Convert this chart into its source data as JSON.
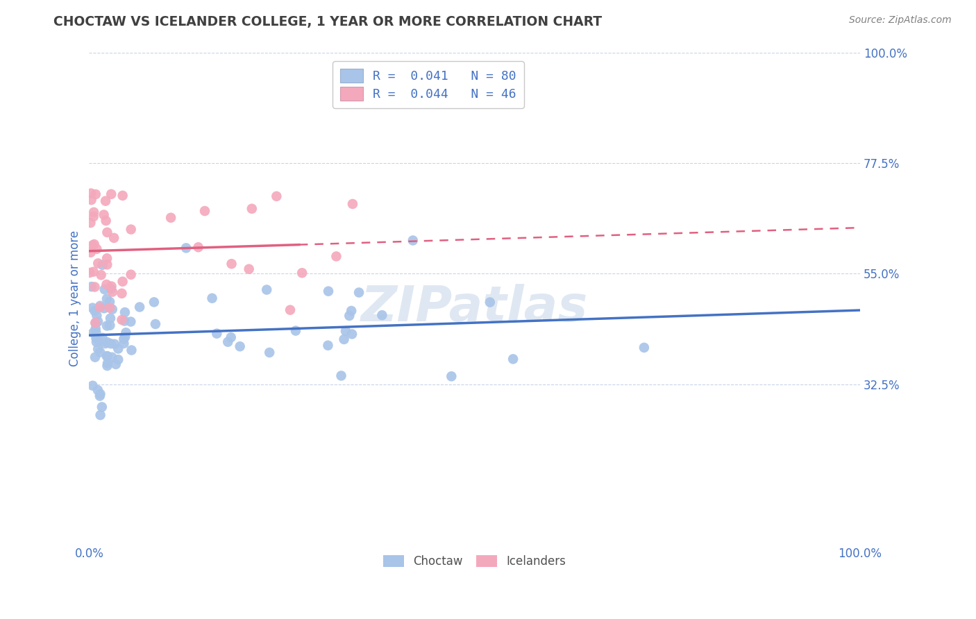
{
  "title": "CHOCTAW VS ICELANDER COLLEGE, 1 YEAR OR MORE CORRELATION CHART",
  "source": "Source: ZipAtlas.com",
  "ylabel": "College, 1 year or more",
  "right_ytick_vals": [
    1.0,
    0.775,
    0.55,
    0.325
  ],
  "right_ytick_labels": [
    "100.0%",
    "77.5%",
    "55.0%",
    "32.5%"
  ],
  "choctaw_color": "#a8c4e8",
  "icelander_color": "#f4a8bc",
  "line_color_choctaw": "#4472c4",
  "line_color_icelander": "#e06080",
  "background_color": "#ffffff",
  "grid_color": "#c8d4e8",
  "watermark": "ZIPatlas",
  "legend_label1": "R =  0.041   N = 80",
  "legend_label2": "R =  0.044   N = 46",
  "choctaw_legend_color": "#a8c4e8",
  "icelander_legend_color": "#f4a8bc",
  "legend_text_color": "#4472c4",
  "title_color": "#404040",
  "axis_label_color": "#4472c4",
  "source_color": "#808080"
}
